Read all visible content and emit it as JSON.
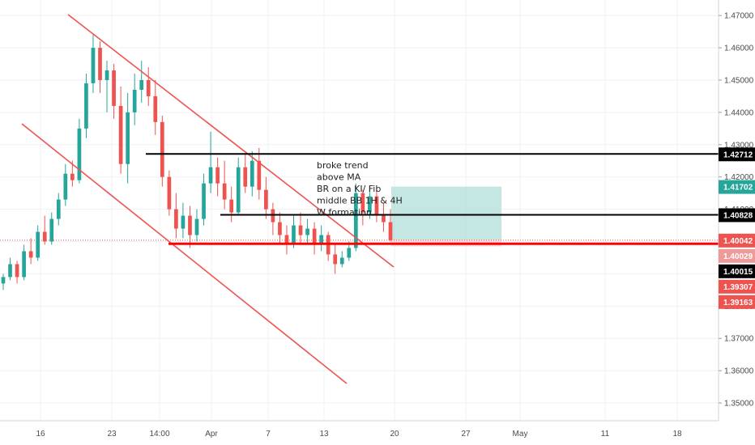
{
  "colors": {
    "up": "#26a69a",
    "down": "#ef5350",
    "grid": "#eef0f3",
    "trendline": "#ef5350",
    "level_black": "#000000",
    "level_red": "#ff0000",
    "profit_zone": "#b2dfdb",
    "loss_zone": "#ffcdd2",
    "current_price_line": "#ef5350"
  },
  "chart_data": {
    "type": "candlestick",
    "title": "",
    "xlabel": "",
    "ylabel": "",
    "ylim": [
      1.3465,
      1.4728
    ],
    "grid": true,
    "y_ticks": [
      "1.47000",
      "1.46000",
      "1.45000",
      "1.44000",
      "1.43000",
      "1.42000",
      "1.41000",
      "1.40000",
      "1.39000",
      "1.38000",
      "1.37000",
      "1.36000",
      "1.35000"
    ],
    "x_ticks": [
      "16",
      "23",
      "14:00",
      "Apr",
      "7",
      "13",
      "20",
      "27",
      "May",
      "11",
      "18"
    ],
    "price_labels": [
      {
        "text": "1.42712",
        "value": 1.42712,
        "bg": "#000000",
        "fg": "#ffffff"
      },
      {
        "text": "1.41702",
        "value": 1.41702,
        "bg": "#26a69a",
        "fg": "#ffffff"
      },
      {
        "text": "1.40828",
        "value": 1.40828,
        "bg": "#000000",
        "fg": "#ffffff"
      },
      {
        "text": "1.40042",
        "value": 1.40042,
        "bg": "#ef5350",
        "fg": "#ffffff"
      },
      {
        "text": "1.40029",
        "value": 1.40029,
        "bg": "#ef9a9a",
        "fg": "#ffffff"
      },
      {
        "text": "1.40015",
        "value": 1.40015,
        "bg": "#000000",
        "fg": "#ffffff"
      },
      {
        "text": "1.39307",
        "value": 1.39307,
        "bg": "#ef5350",
        "fg": "#ffffff"
      },
      {
        "text": "1.39163",
        "value": 1.39163,
        "bg": "#ef5350",
        "fg": "#ffffff"
      }
    ],
    "horizontal_levels": [
      {
        "name": "resistance",
        "value": 1.42712,
        "color": "#000000"
      },
      {
        "name": "mid-level",
        "value": 1.40828,
        "color": "#000000"
      },
      {
        "name": "support",
        "value": 1.3993,
        "color": "#ff0000"
      }
    ],
    "trade_setup": {
      "entry": 1.40042,
      "target": 1.41702,
      "stop": 1.3985
    },
    "annotation_lines": [
      "broke trend",
      "above MA",
      "BR on a KI/ Fib",
      "middle BB 1H & 4H",
      "W formation"
    ],
    "candles": [
      [
        1.387,
        1.39,
        1.385,
        1.389
      ],
      [
        1.389,
        1.395,
        1.388,
        1.393
      ],
      [
        1.393,
        1.394,
        1.387,
        1.389
      ],
      [
        1.389,
        1.399,
        1.388,
        1.397
      ],
      [
        1.397,
        1.401,
        1.393,
        1.395
      ],
      [
        1.395,
        1.405,
        1.394,
        1.403
      ],
      [
        1.403,
        1.408,
        1.399,
        1.4
      ],
      [
        1.4,
        1.409,
        1.399,
        1.407
      ],
      [
        1.407,
        1.415,
        1.405,
        1.413
      ],
      [
        1.413,
        1.424,
        1.411,
        1.421
      ],
      [
        1.421,
        1.425,
        1.417,
        1.419
      ],
      [
        1.419,
        1.438,
        1.418,
        1.435
      ],
      [
        1.435,
        1.452,
        1.432,
        1.449
      ],
      [
        1.449,
        1.464,
        1.446,
        1.46
      ],
      [
        1.46,
        1.462,
        1.446,
        1.45
      ],
      [
        1.45,
        1.456,
        1.44,
        1.453
      ],
      [
        1.453,
        1.455,
        1.438,
        1.442
      ],
      [
        1.442,
        1.448,
        1.421,
        1.424
      ],
      [
        1.424,
        1.446,
        1.418,
        1.44
      ],
      [
        1.44,
        1.452,
        1.436,
        1.447
      ],
      [
        1.447,
        1.456,
        1.443,
        1.45
      ],
      [
        1.45,
        1.454,
        1.442,
        1.445
      ],
      [
        1.445,
        1.45,
        1.433,
        1.437
      ],
      [
        1.437,
        1.439,
        1.417,
        1.42
      ],
      [
        1.42,
        1.422,
        1.408,
        1.41
      ],
      [
        1.41,
        1.415,
        1.401,
        1.404
      ],
      [
        1.404,
        1.412,
        1.401,
        1.408
      ],
      [
        1.408,
        1.411,
        1.398,
        1.402
      ],
      [
        1.402,
        1.41,
        1.4,
        1.407
      ],
      [
        1.407,
        1.421,
        1.405,
        1.418
      ],
      [
        1.418,
        1.434,
        1.415,
        1.423
      ],
      [
        1.423,
        1.426,
        1.414,
        1.418
      ],
      [
        1.418,
        1.425,
        1.41,
        1.413
      ],
      [
        1.413,
        1.417,
        1.406,
        1.409
      ],
      [
        1.409,
        1.426,
        1.408,
        1.423
      ],
      [
        1.423,
        1.427,
        1.415,
        1.417
      ],
      [
        1.417,
        1.428,
        1.414,
        1.425
      ],
      [
        1.425,
        1.429,
        1.413,
        1.416
      ],
      [
        1.416,
        1.42,
        1.407,
        1.41
      ],
      [
        1.41,
        1.412,
        1.402,
        1.406
      ],
      [
        1.406,
        1.409,
        1.399,
        1.402
      ],
      [
        1.402,
        1.405,
        1.396,
        1.399
      ],
      [
        1.399,
        1.408,
        1.398,
        1.405
      ],
      [
        1.405,
        1.409,
        1.399,
        1.402
      ],
      [
        1.402,
        1.407,
        1.399,
        1.404
      ],
      [
        1.404,
        1.406,
        1.396,
        1.399
      ],
      [
        1.399,
        1.405,
        1.397,
        1.402
      ],
      [
        1.402,
        1.403,
        1.394,
        1.396
      ],
      [
        1.396,
        1.399,
        1.39,
        1.393
      ],
      [
        1.393,
        1.397,
        1.392,
        1.395
      ],
      [
        1.395,
        1.4,
        1.394,
        1.398
      ],
      [
        1.398,
        1.418,
        1.397,
        1.415
      ],
      [
        1.415,
        1.416,
        1.405,
        1.409
      ],
      [
        1.409,
        1.417,
        1.407,
        1.414
      ],
      [
        1.414,
        1.416,
        1.406,
        1.408
      ],
      [
        1.408,
        1.412,
        1.403,
        1.406
      ],
      [
        1.406,
        1.41,
        1.4,
        1.4004
      ]
    ]
  }
}
